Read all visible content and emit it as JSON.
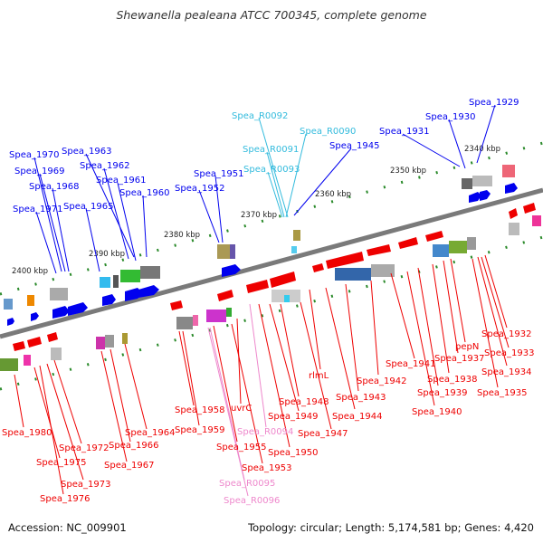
{
  "title": "Shewanella pealeana ATCC 700345, complete genome",
  "footer": {
    "accession": "Accession: NC_009901",
    "summary": "Topology: circular; Length: 5,174,581 bp; Genes: 4,420"
  },
  "colors": {
    "forward_gene": "#0000ee",
    "reverse_gene": "#ee0000",
    "rna_forward": "#33ccee",
    "rna_reverse": "#ee88cc",
    "backbone": "#777777",
    "tick": "#2a8a2a"
  },
  "scale_labels": [
    "2340 kbp",
    "2350 kbp",
    "2360 kbp",
    "2370 kbp",
    "2380 kbp",
    "2390 kbp",
    "2400 kbp"
  ],
  "top_labels": [
    {
      "text": "Spea_1929",
      "type": "fwd"
    },
    {
      "text": "Spea_1930",
      "type": "fwd"
    },
    {
      "text": "Spea_1931",
      "type": "fwd"
    },
    {
      "text": "Spea_R0092",
      "type": "rna"
    },
    {
      "text": "Spea_R0090",
      "type": "rna"
    },
    {
      "text": "Spea_R0091",
      "type": "rna"
    },
    {
      "text": "Spea_R0093",
      "type": "rna"
    },
    {
      "text": "Spea_1945",
      "type": "fwd"
    },
    {
      "text": "Spea_1951",
      "type": "fwd"
    },
    {
      "text": "Spea_1952",
      "type": "fwd"
    },
    {
      "text": "Spea_1963",
      "type": "fwd"
    },
    {
      "text": "Spea_1962",
      "type": "fwd"
    },
    {
      "text": "Spea_1961",
      "type": "fwd"
    },
    {
      "text": "Spea_1960",
      "type": "fwd"
    },
    {
      "text": "Spea_1970",
      "type": "fwd"
    },
    {
      "text": "Spea_1969",
      "type": "fwd"
    },
    {
      "text": "Spea_1968",
      "type": "fwd"
    },
    {
      "text": "Spea_1965",
      "type": "fwd"
    },
    {
      "text": "Spea_1971",
      "type": "fwd"
    }
  ],
  "bottom_labels": [
    {
      "text": "Spea_1932",
      "type": "rev"
    },
    {
      "text": "Spea_1933",
      "type": "rev"
    },
    {
      "text": "Spea_1934",
      "type": "rev"
    },
    {
      "text": "Spea_1935",
      "type": "rev"
    },
    {
      "text": "pepN",
      "type": "rev"
    },
    {
      "text": "Spea_1937",
      "type": "rev"
    },
    {
      "text": "Spea_1938",
      "type": "rev"
    },
    {
      "text": "Spea_1939",
      "type": "rev"
    },
    {
      "text": "Spea_1940",
      "type": "rev"
    },
    {
      "text": "Spea_1941",
      "type": "rev"
    },
    {
      "text": "Spea_1942",
      "type": "rev"
    },
    {
      "text": "Spea_1943",
      "type": "rev"
    },
    {
      "text": "Spea_1944",
      "type": "rev"
    },
    {
      "text": "rlmL",
      "type": "rev"
    },
    {
      "text": "Spea_1947",
      "type": "rev"
    },
    {
      "text": "Spea_1948",
      "type": "rev"
    },
    {
      "text": "Spea_1949",
      "type": "rev"
    },
    {
      "text": "Spea_1950",
      "type": "rev"
    },
    {
      "text": "Spea_R0094",
      "type": "rnarev"
    },
    {
      "text": "uvrC",
      "type": "rev"
    },
    {
      "text": "Spea_1953",
      "type": "rev"
    },
    {
      "text": "Spea_1955",
      "type": "rev"
    },
    {
      "text": "Spea_R0095",
      "type": "rnarev"
    },
    {
      "text": "Spea_R0096",
      "type": "rnarev"
    },
    {
      "text": "Spea_1958",
      "type": "rev"
    },
    {
      "text": "Spea_1959",
      "type": "rev"
    },
    {
      "text": "Spea_1964",
      "type": "rev"
    },
    {
      "text": "Spea_1966",
      "type": "rev"
    },
    {
      "text": "Spea_1967",
      "type": "rev"
    },
    {
      "text": "Spea_1972",
      "type": "rev"
    },
    {
      "text": "Spea_1973",
      "type": "rev"
    },
    {
      "text": "Spea_1975",
      "type": "rev"
    },
    {
      "text": "Spea_1976",
      "type": "rev"
    },
    {
      "text": "Spea_1980",
      "type": "rev"
    }
  ]
}
